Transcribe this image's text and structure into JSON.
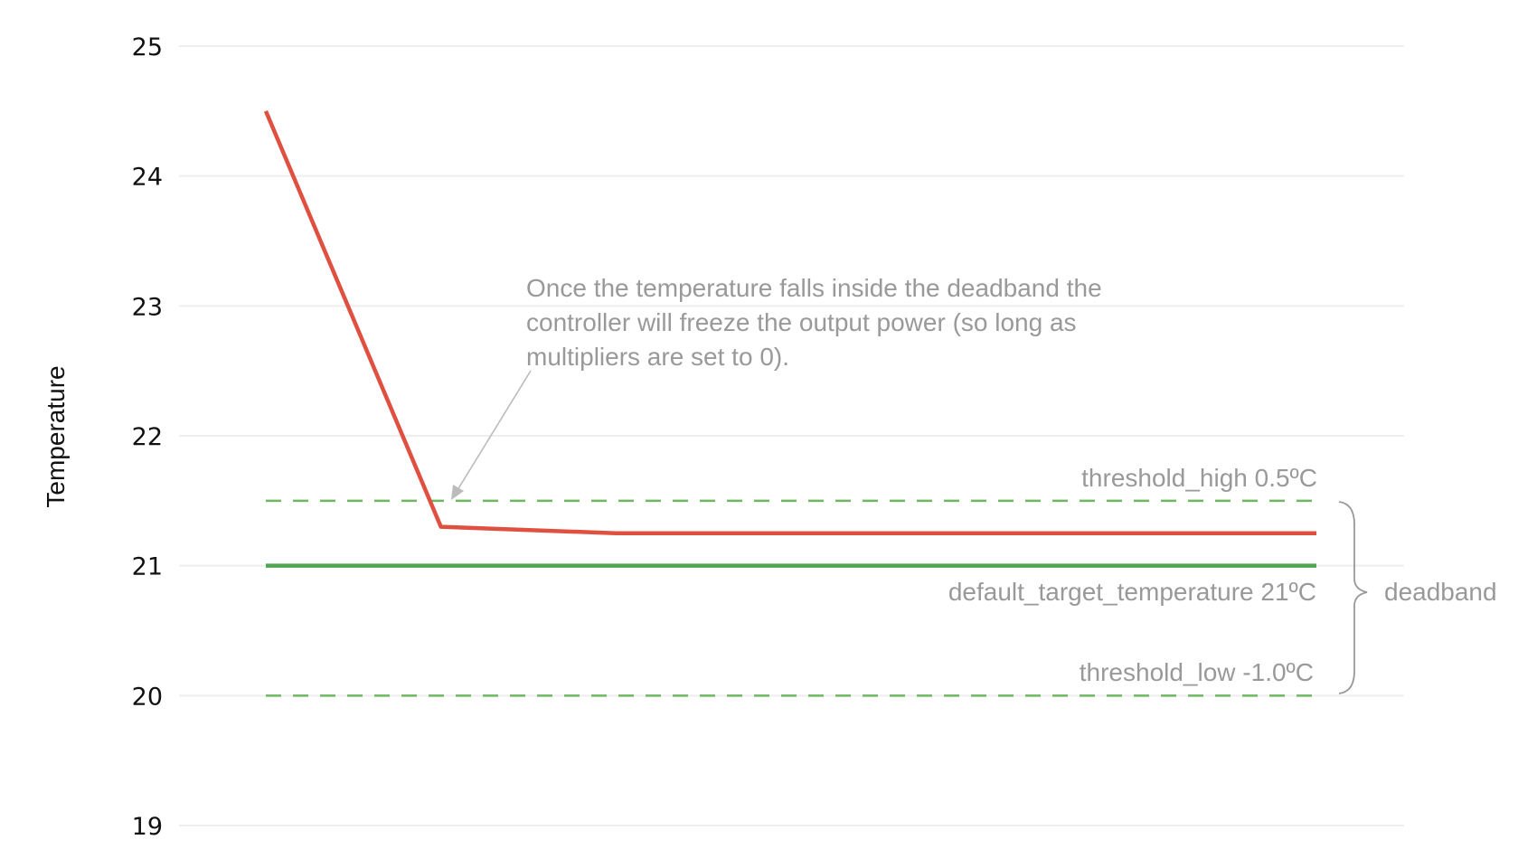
{
  "chart_data": {
    "type": "line",
    "title": "",
    "xlabel": "",
    "ylabel": "Temperature",
    "ylim": [
      19,
      25
    ],
    "yticks": [
      19,
      20,
      21,
      22,
      23,
      24,
      25
    ],
    "grid": true,
    "x": [
      0,
      1,
      2,
      3,
      4,
      5,
      6
    ],
    "series": [
      {
        "key": "temperature",
        "color": "#e05040",
        "style": "solid",
        "values": [
          24.5,
          21.3,
          21.25,
          21.25,
          21.25,
          21.25,
          21.25
        ]
      },
      {
        "key": "target",
        "color": "#4fa552",
        "style": "solid",
        "values": [
          21,
          21,
          21,
          21,
          21,
          21,
          21
        ]
      },
      {
        "key": "high",
        "color": "#6db860",
        "style": "dashed",
        "values": [
          21.5,
          21.5,
          21.5,
          21.5,
          21.5,
          21.5,
          21.5
        ]
      },
      {
        "key": "low",
        "color": "#6db860",
        "style": "dashed",
        "values": [
          20,
          20,
          20,
          20,
          20,
          20,
          20
        ]
      }
    ],
    "annotations": {
      "note_lines": [
        "Once the temperature falls inside the deadband the",
        "controller will freeze the output power (so long as",
        "multipliers are set to 0)."
      ],
      "threshold_high": "threshold_high  0.5ºC",
      "target": "default_target_temperature  21ºC",
      "threshold_low": "threshold_low  -1.0ºC",
      "deadband": "deadband"
    }
  }
}
